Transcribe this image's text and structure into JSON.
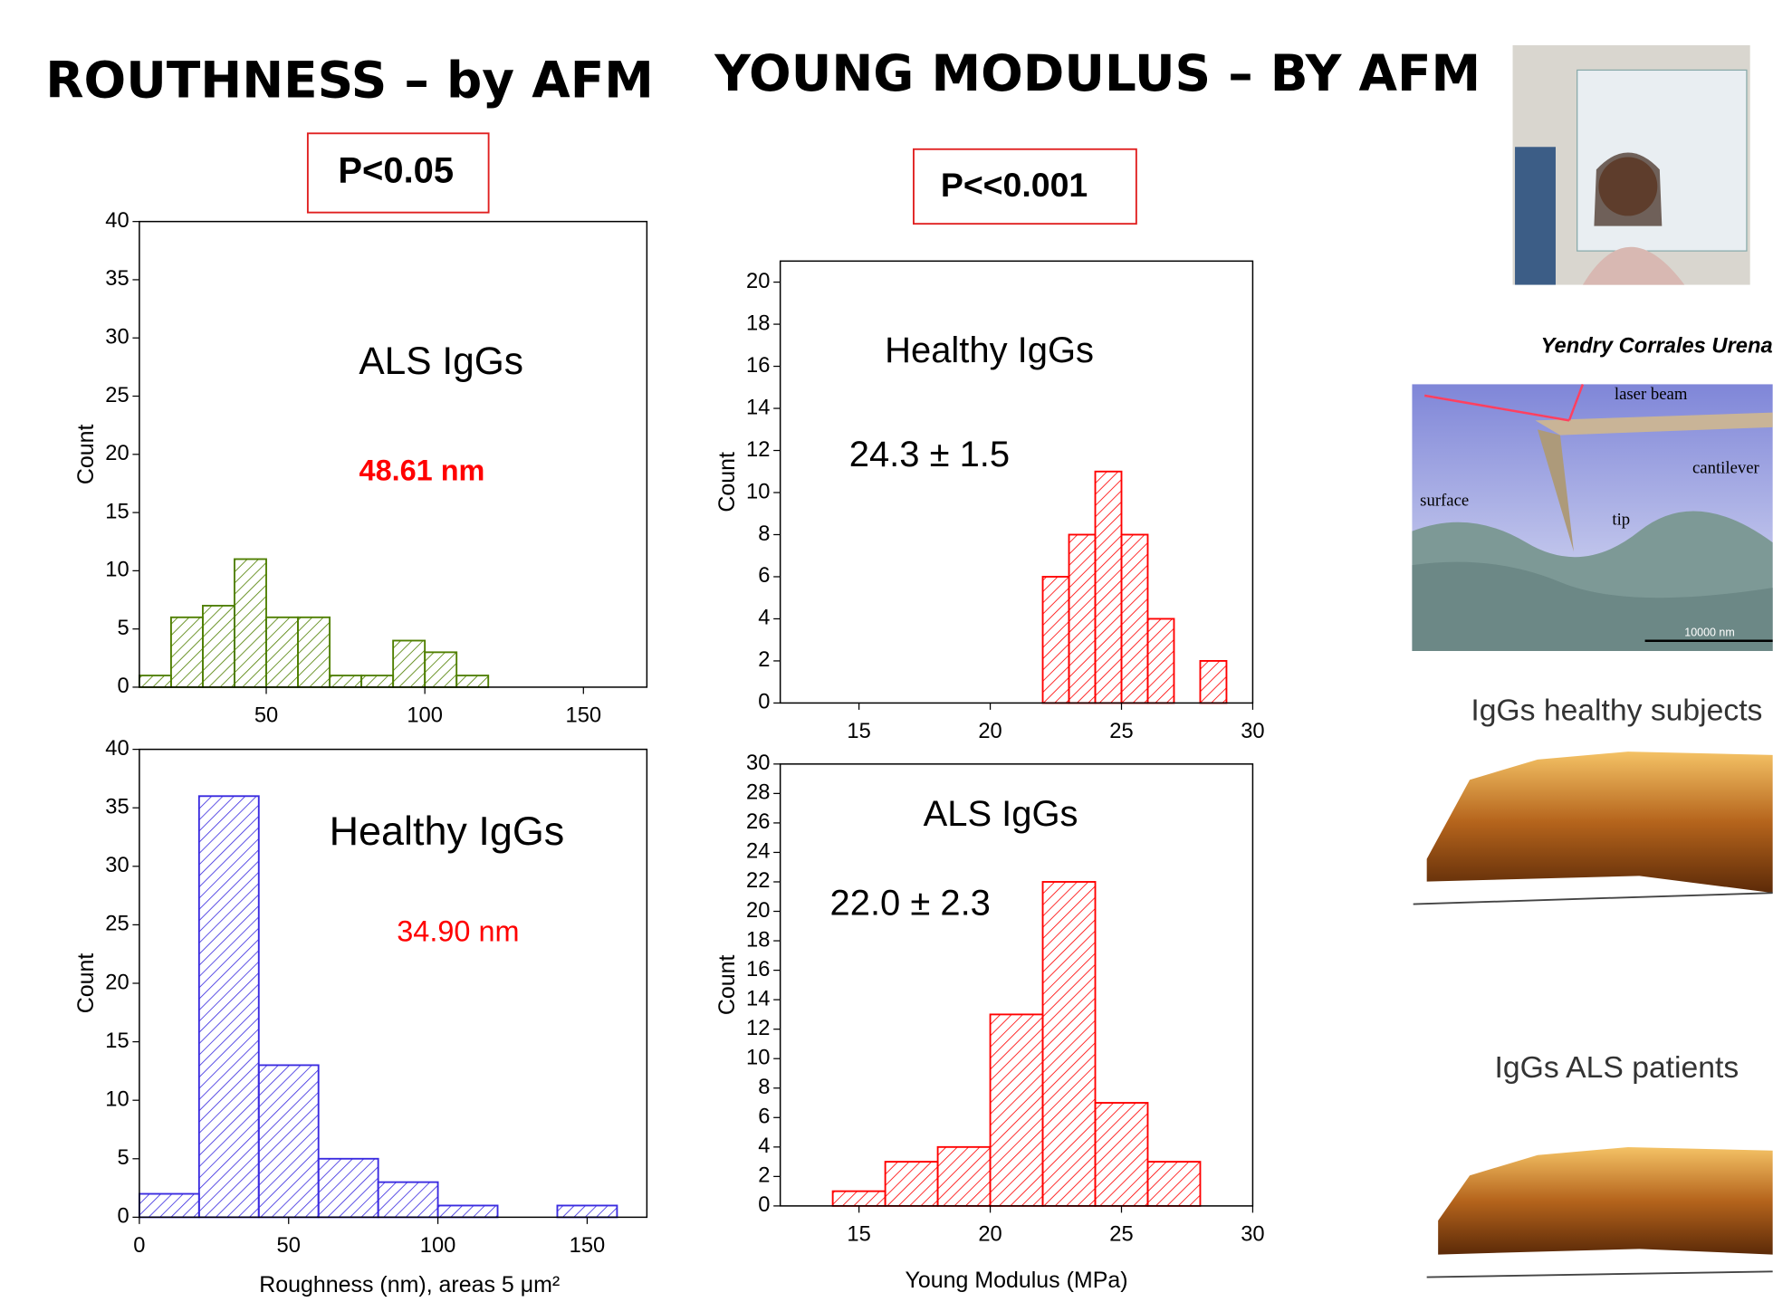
{
  "slide": {
    "left_heading": "ROUTHNESS – by AFM",
    "right_heading": "YOUNG MODULUS – BY AFM",
    "left_p_value": "P<0.05",
    "right_p_value": "P<<0.001",
    "photo_caption": "Yendry Corrales Urena",
    "diagram_labels": [
      "laser beam",
      "cantilever",
      "surface",
      "tip",
      "10000 nm"
    ],
    "image_captions": [
      "IgGs healthy subjects",
      "IgGs ALS patients"
    ]
  },
  "chart_data": [
    {
      "type": "histogram",
      "y_label": "Count",
      "color": "#4f7f00",
      "bins": [
        10,
        20,
        30,
        40,
        50,
        60,
        70,
        80,
        90,
        100,
        110,
        120
      ],
      "values": [
        1,
        6,
        7,
        11,
        6,
        6,
        1,
        1,
        4,
        3,
        1
      ],
      "xlim": [
        10,
        170
      ],
      "xticks": [
        50,
        100,
        150
      ],
      "ylim": [
        0,
        40
      ],
      "yticks": [
        0,
        5,
        10,
        15,
        20,
        25,
        30,
        35,
        40
      ],
      "annotations": [
        {
          "text": "ALS IgGs",
          "color": "#000000"
        },
        {
          "text": "48.61 nm",
          "color": "#ff0000"
        }
      ]
    },
    {
      "type": "histogram",
      "y_label": "Count",
      "x_label": "Roughness (nm), areas 5 μm²",
      "color": "#3a2be0",
      "bins": [
        0,
        20,
        40,
        60,
        80,
        100,
        120,
        140,
        160
      ],
      "values": [
        2,
        36,
        13,
        5,
        3,
        1,
        0,
        1
      ],
      "xlim": [
        0,
        170
      ],
      "xticks": [
        0,
        50,
        100,
        150
      ],
      "ylim": [
        0,
        40
      ],
      "yticks": [
        0,
        5,
        10,
        15,
        20,
        25,
        30,
        35,
        40
      ],
      "annotations": [
        {
          "text": "Healthy IgGs",
          "color": "#000000"
        },
        {
          "text": "34.90 nm",
          "color": "#ff0000"
        }
      ]
    },
    {
      "type": "histogram",
      "y_label": "Count",
      "color": "#ff0000",
      "bins": [
        22,
        23,
        24,
        25,
        26,
        27,
        28,
        29
      ],
      "values": [
        6,
        8,
        11,
        8,
        4,
        0,
        2
      ],
      "xlim": [
        12,
        30
      ],
      "xticks": [
        15,
        20,
        25,
        30
      ],
      "ylim": [
        0,
        21
      ],
      "yticks": [
        0,
        2,
        4,
        6,
        8,
        10,
        12,
        14,
        16,
        18,
        20
      ],
      "annotations": [
        {
          "text": "Healthy IgGs",
          "color": "#000000"
        },
        {
          "text": "24.3 ± 1.5",
          "color": "#000000"
        }
      ]
    },
    {
      "type": "histogram",
      "y_label": "Count",
      "x_label": "Young Modulus (MPa)",
      "color": "#ff0000",
      "bins": [
        14,
        16,
        18,
        20,
        22,
        24,
        26,
        28
      ],
      "values": [
        1,
        3,
        4,
        13,
        22,
        7,
        3
      ],
      "xlim": [
        12,
        30
      ],
      "xticks": [
        15,
        20,
        25,
        30
      ],
      "ylim": [
        0,
        30
      ],
      "yticks": [
        0,
        2,
        4,
        6,
        8,
        10,
        12,
        14,
        16,
        18,
        20,
        22,
        24,
        26,
        28,
        30
      ],
      "annotations": [
        {
          "text": "ALS IgGs",
          "color": "#000000"
        },
        {
          "text": "22.0 ± 2.3",
          "color": "#000000"
        }
      ]
    }
  ]
}
